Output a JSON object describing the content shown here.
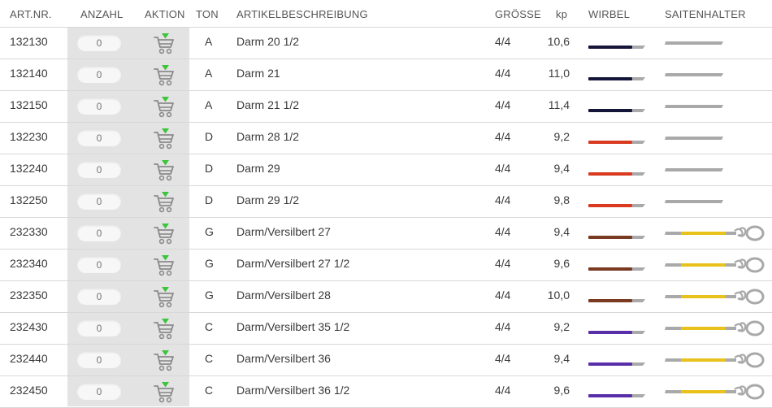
{
  "headers": {
    "art_nr": "ART.NR.",
    "anzahl": "ANZAHL",
    "aktion": "AKTION",
    "ton": "TON",
    "beschreibung": "ARTIKELBESCHREIBUNG",
    "groesse": "GRÖSSE",
    "kp": "kp",
    "wirbel": "WIRBEL",
    "saitenhalter": "SAITENHALTER"
  },
  "colors": {
    "cart_icon": "#8a8a8a",
    "cart_arrow": "#3cc43c",
    "string_grey": "#a9a9a9"
  },
  "rows": [
    {
      "art": "132130",
      "qty": "0",
      "ton": "A",
      "desc": "Darm 20 1/2",
      "size": "4/4",
      "kp": "10,6",
      "wirbel_color": "#15153a",
      "halter_type": "plain",
      "halter_color": ""
    },
    {
      "art": "132140",
      "qty": "0",
      "ton": "A",
      "desc": "Darm 21",
      "size": "4/4",
      "kp": "11,0",
      "wirbel_color": "#15153a",
      "halter_type": "plain",
      "halter_color": ""
    },
    {
      "art": "132150",
      "qty": "0",
      "ton": "A",
      "desc": "Darm 21 1/2",
      "size": "4/4",
      "kp": "11,4",
      "wirbel_color": "#15153a",
      "halter_type": "plain",
      "halter_color": ""
    },
    {
      "art": "132230",
      "qty": "0",
      "ton": "D",
      "desc": "Darm 28 1/2",
      "size": "4/4",
      "kp": "9,2",
      "wirbel_color": "#d93a20",
      "halter_type": "plain",
      "halter_color": ""
    },
    {
      "art": "132240",
      "qty": "0",
      "ton": "D",
      "desc": "Darm 29",
      "size": "4/4",
      "kp": "9,4",
      "wirbel_color": "#d93a20",
      "halter_type": "plain",
      "halter_color": ""
    },
    {
      "art": "132250",
      "qty": "0",
      "ton": "D",
      "desc": "Darm 29 1/2",
      "size": "4/4",
      "kp": "9,8",
      "wirbel_color": "#d93a20",
      "halter_type": "plain",
      "halter_color": ""
    },
    {
      "art": "232330",
      "qty": "0",
      "ton": "G",
      "desc": "Darm/Versilbert 27",
      "size": "4/4",
      "kp": "9,4",
      "wirbel_color": "#7a3a22",
      "halter_type": "loop",
      "halter_color": "#e8c21a"
    },
    {
      "art": "232340",
      "qty": "0",
      "ton": "G",
      "desc": "Darm/Versilbert 27 1/2",
      "size": "4/4",
      "kp": "9,6",
      "wirbel_color": "#7a3a22",
      "halter_type": "loop",
      "halter_color": "#e8c21a"
    },
    {
      "art": "232350",
      "qty": "0",
      "ton": "G",
      "desc": "Darm/Versilbert 28",
      "size": "4/4",
      "kp": "10,0",
      "wirbel_color": "#7a3a22",
      "halter_type": "loop",
      "halter_color": "#e8c21a"
    },
    {
      "art": "232430",
      "qty": "0",
      "ton": "C",
      "desc": "Darm/Versilbert 35 1/2",
      "size": "4/4",
      "kp": "9,2",
      "wirbel_color": "#5a2ea8",
      "halter_type": "loop",
      "halter_color": "#e8c21a"
    },
    {
      "art": "232440",
      "qty": "0",
      "ton": "C",
      "desc": "Darm/Versilbert 36",
      "size": "4/4",
      "kp": "9,4",
      "wirbel_color": "#5a2ea8",
      "halter_type": "loop",
      "halter_color": "#e8c21a"
    },
    {
      "art": "232450",
      "qty": "0",
      "ton": "C",
      "desc": "Darm/Versilbert 36 1/2",
      "size": "4/4",
      "kp": "9,6",
      "wirbel_color": "#5a2ea8",
      "halter_type": "loop",
      "halter_color": "#e8c21a"
    }
  ]
}
